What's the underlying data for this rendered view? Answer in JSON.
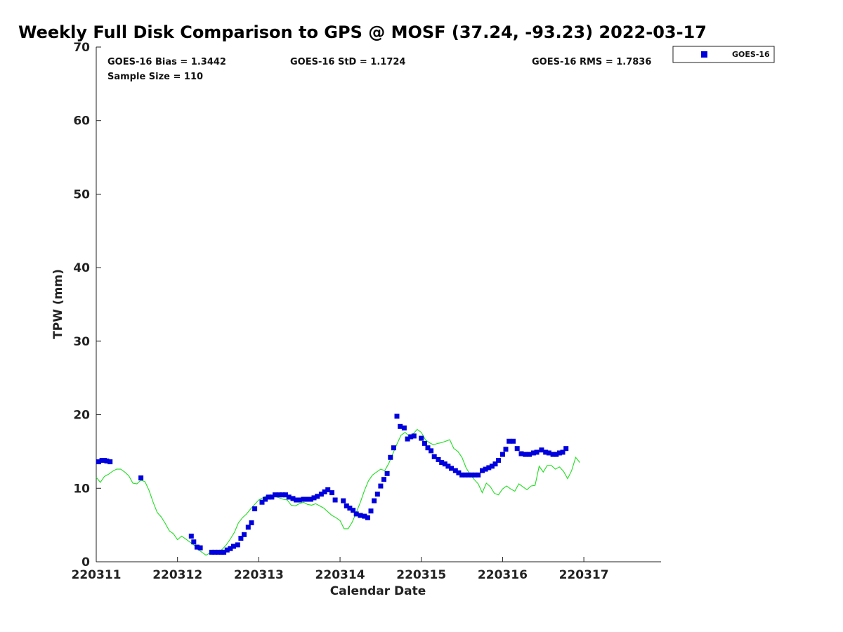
{
  "chart_data": {
    "type": "scatter",
    "title": "Weekly Full Disk Comparison to GPS @ MOSF (37.24, -93.23) 2022-03-17",
    "xlabel": "Calendar Date",
    "ylabel": "TPW (mm)",
    "xlim": [
      0,
      6.95
    ],
    "ylim": [
      0,
      70
    ],
    "x_ticks": [
      0,
      1,
      2,
      3,
      4,
      5,
      6
    ],
    "x_tick_labels": [
      "220311",
      "220312",
      "220313",
      "220314",
      "220315",
      "220316",
      "220317"
    ],
    "y_ticks": [
      0,
      10,
      20,
      30,
      40,
      50,
      60,
      70
    ],
    "y_tick_labels": [
      "0",
      "10",
      "20",
      "30",
      "40",
      "50",
      "60",
      "70"
    ],
    "grid": false,
    "legend_position": "top-right, outside plot",
    "stats": {
      "bias": "GOES-16 Bias = 1.3442",
      "std": "GOES-16 StD = 1.1724",
      "rms": "GOES-16 RMS = 1.7836",
      "sample": "Sample Size = 110"
    },
    "series": [
      {
        "name": "GOES-16",
        "kind": "scatter",
        "color": "#0000dd",
        "x": [
          0.03,
          0.07,
          0.1,
          0.13,
          0.17,
          0.55,
          1.17,
          1.2,
          1.24,
          1.28,
          1.42,
          1.46,
          1.5,
          1.54,
          1.57,
          1.61,
          1.65,
          1.69,
          1.74,
          1.78,
          1.82,
          1.87,
          1.91,
          1.95,
          2.04,
          2.08,
          2.12,
          2.16,
          2.2,
          2.25,
          2.29,
          2.33,
          2.37,
          2.42,
          2.46,
          2.5,
          2.55,
          2.6,
          2.64,
          2.68,
          2.72,
          2.77,
          2.81,
          2.85,
          2.9,
          2.94,
          3.04,
          3.08,
          3.12,
          3.16,
          3.2,
          3.25,
          3.3,
          3.34,
          3.38,
          3.42,
          3.46,
          3.5,
          3.54,
          3.58,
          3.62,
          3.66,
          3.7,
          3.74,
          3.79,
          3.83,
          3.87,
          3.91,
          4.0,
          4.04,
          4.08,
          4.12,
          4.16,
          4.21,
          4.25,
          4.29,
          4.33,
          4.37,
          4.42,
          4.46,
          4.5,
          4.54,
          4.58,
          4.62,
          4.66,
          4.7,
          4.75,
          4.79,
          4.83,
          4.87,
          4.91,
          4.95,
          5.0,
          5.04,
          5.08,
          5.13,
          5.18,
          5.23,
          5.28,
          5.33,
          5.38,
          5.42,
          5.48,
          5.53,
          5.57,
          5.62,
          5.66,
          5.7,
          5.74,
          5.78
        ],
        "y": [
          13.6,
          13.8,
          13.8,
          13.7,
          13.6,
          11.4,
          3.5,
          2.7,
          2.0,
          1.9,
          1.3,
          1.3,
          1.3,
          1.3,
          1.3,
          1.6,
          1.8,
          2.1,
          2.3,
          3.2,
          3.7,
          4.7,
          5.3,
          7.2,
          8.1,
          8.5,
          8.8,
          8.8,
          9.1,
          9.1,
          9.1,
          9.1,
          8.8,
          8.6,
          8.4,
          8.4,
          8.5,
          8.5,
          8.5,
          8.7,
          8.9,
          9.2,
          9.5,
          9.8,
          9.4,
          8.4,
          8.3,
          7.6,
          7.3,
          7.0,
          6.5,
          6.3,
          6.2,
          6.0,
          6.9,
          8.3,
          9.2,
          10.3,
          11.2,
          12.0,
          14.2,
          15.5,
          19.8,
          18.4,
          18.2,
          16.7,
          17.0,
          17.1,
          16.8,
          16.1,
          15.5,
          15.1,
          14.3,
          13.9,
          13.5,
          13.3,
          13.0,
          12.7,
          12.4,
          12.1,
          11.8,
          11.8,
          11.8,
          11.8,
          11.8,
          11.8,
          12.4,
          12.6,
          12.8,
          13.0,
          13.3,
          13.8,
          14.6,
          15.3,
          16.4,
          16.4,
          15.4,
          14.7,
          14.6,
          14.6,
          14.8,
          14.9,
          15.2,
          14.9,
          14.8,
          14.6,
          14.6,
          14.8,
          14.9,
          15.4
        ]
      },
      {
        "name": "",
        "kind": "line",
        "color": "#22dd22",
        "x": [
          0.0,
          0.05,
          0.1,
          0.15,
          0.2,
          0.25,
          0.3,
          0.35,
          0.4,
          0.45,
          0.5,
          0.55,
          0.6,
          0.65,
          0.7,
          0.75,
          0.8,
          0.85,
          0.9,
          0.95,
          1.0,
          1.05,
          1.1,
          1.15,
          1.2,
          1.25,
          1.3,
          1.35,
          1.4,
          1.45,
          1.5,
          1.55,
          1.6,
          1.65,
          1.7,
          1.75,
          1.8,
          1.85,
          1.9,
          1.95,
          2.0,
          2.05,
          2.1,
          2.15,
          2.2,
          2.25,
          2.3,
          2.35,
          2.4,
          2.45,
          2.5,
          2.55,
          2.6,
          2.65,
          2.7,
          2.75,
          2.8,
          2.85,
          2.9,
          2.95,
          3.0,
          3.05,
          3.1,
          3.15,
          3.2,
          3.25,
          3.3,
          3.35,
          3.4,
          3.45,
          3.5,
          3.55,
          3.6,
          3.65,
          3.7,
          3.75,
          3.8,
          3.85,
          3.9,
          3.95,
          4.0,
          4.05,
          4.1,
          4.15,
          4.2,
          4.25,
          4.3,
          4.35,
          4.4,
          4.45,
          4.5,
          4.55,
          4.6,
          4.65,
          4.7,
          4.75,
          4.8,
          4.85,
          4.9,
          4.95,
          5.0,
          5.05,
          5.1,
          5.15,
          5.2,
          5.25,
          5.3,
          5.35,
          5.4,
          5.45,
          5.5,
          5.55,
          5.6,
          5.65,
          5.7,
          5.75,
          5.8,
          5.85,
          5.9,
          5.95
        ],
        "y": [
          11.5,
          10.8,
          11.6,
          11.9,
          12.3,
          12.6,
          12.6,
          12.2,
          11.7,
          10.7,
          10.6,
          11.1,
          10.9,
          9.7,
          8.1,
          6.7,
          6.1,
          5.2,
          4.2,
          3.8,
          3.0,
          3.5,
          3.1,
          2.7,
          2.3,
          1.7,
          1.3,
          0.9,
          1.2,
          1.3,
          1.2,
          1.7,
          2.3,
          3.1,
          4.0,
          5.3,
          6.0,
          6.5,
          7.2,
          7.8,
          8.4,
          8.7,
          9.0,
          9.1,
          8.9,
          8.7,
          8.5,
          8.4,
          7.7,
          7.6,
          7.9,
          8.1,
          7.8,
          7.7,
          7.9,
          7.6,
          7.3,
          6.8,
          6.3,
          6.0,
          5.6,
          4.5,
          4.5,
          5.4,
          6.7,
          8.1,
          9.7,
          11.0,
          11.8,
          12.2,
          12.6,
          12.4,
          13.4,
          14.7,
          16.0,
          17.2,
          17.6,
          17.1,
          17.4,
          18.0,
          17.6,
          16.6,
          16.2,
          15.9,
          16.1,
          16.2,
          16.4,
          16.6,
          15.4,
          15.0,
          14.2,
          12.8,
          11.9,
          11.2,
          10.6,
          9.4,
          10.7,
          10.2,
          9.3,
          9.1,
          9.9,
          10.3,
          9.9,
          9.6,
          10.6,
          10.2,
          9.8,
          10.3,
          10.4,
          13.0,
          12.2,
          13.1,
          13.1,
          12.6,
          12.9,
          12.3,
          11.3,
          12.4,
          14.2,
          13.5
        ]
      }
    ]
  },
  "legend": {
    "label": "GOES-16",
    "color": "#0000dd"
  }
}
